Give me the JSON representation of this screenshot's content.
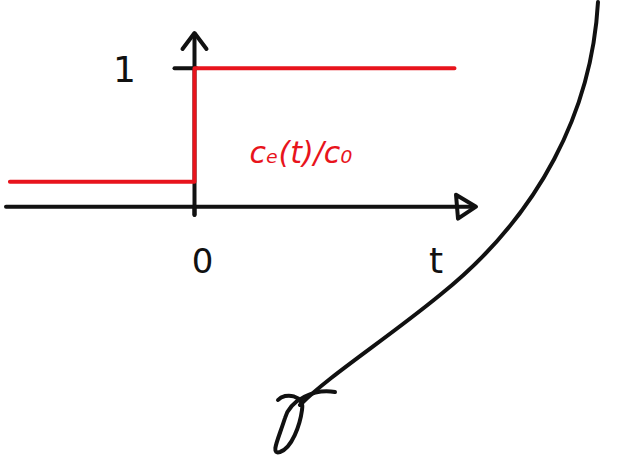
{
  "chart_data": {
    "type": "line",
    "x": [
      -1.42,
      0,
      0,
      2.0
    ],
    "series": [
      {
        "name": "cₑ(t)/c₀",
        "color": "#e8141c",
        "values": [
          0.18,
          0.18,
          1,
          1
        ]
      }
    ],
    "x_label": "t",
    "xlim": [
      -1.45,
      2.15
    ],
    "xticks": [
      0
    ],
    "ylim": [
      -0.06,
      1.24
    ],
    "yticks": [
      1
    ],
    "grid": false
  }
}
